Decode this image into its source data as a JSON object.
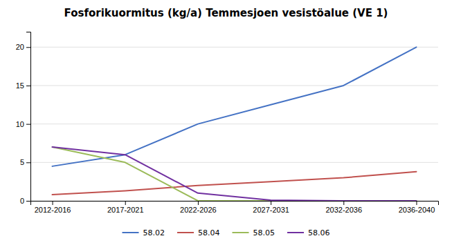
{
  "chart_data": {
    "type": "line",
    "title": "Fosforikuormitus (kg/a) Temmesjoen vesistöalue (VE 1)",
    "categories": [
      "2012-2016",
      "2017-2021",
      "2022-2026",
      "2027-2031",
      "2032-2036",
      "2036-2040"
    ],
    "series": [
      {
        "name": "58.02",
        "color": "#4472C4",
        "values": [
          4.5,
          6.0,
          10.0,
          12.5,
          15.0,
          20.0
        ]
      },
      {
        "name": "58.04",
        "color": "#C0504D",
        "values": [
          0.8,
          1.3,
          2.0,
          2.5,
          3.0,
          3.8
        ]
      },
      {
        "name": "58.05",
        "color": "#9BBB59",
        "values": [
          7.0,
          5.0,
          0.0,
          0.0,
          0.0,
          0.0
        ]
      },
      {
        "name": "58.06",
        "color": "#7030A0",
        "values": [
          7.0,
          6.0,
          1.0,
          0.1,
          0.0,
          0.0
        ]
      }
    ],
    "ylim": [
      0,
      22
    ],
    "yticks": [
      0,
      5,
      10,
      15,
      20
    ],
    "grid": true,
    "legend": "bottom"
  }
}
